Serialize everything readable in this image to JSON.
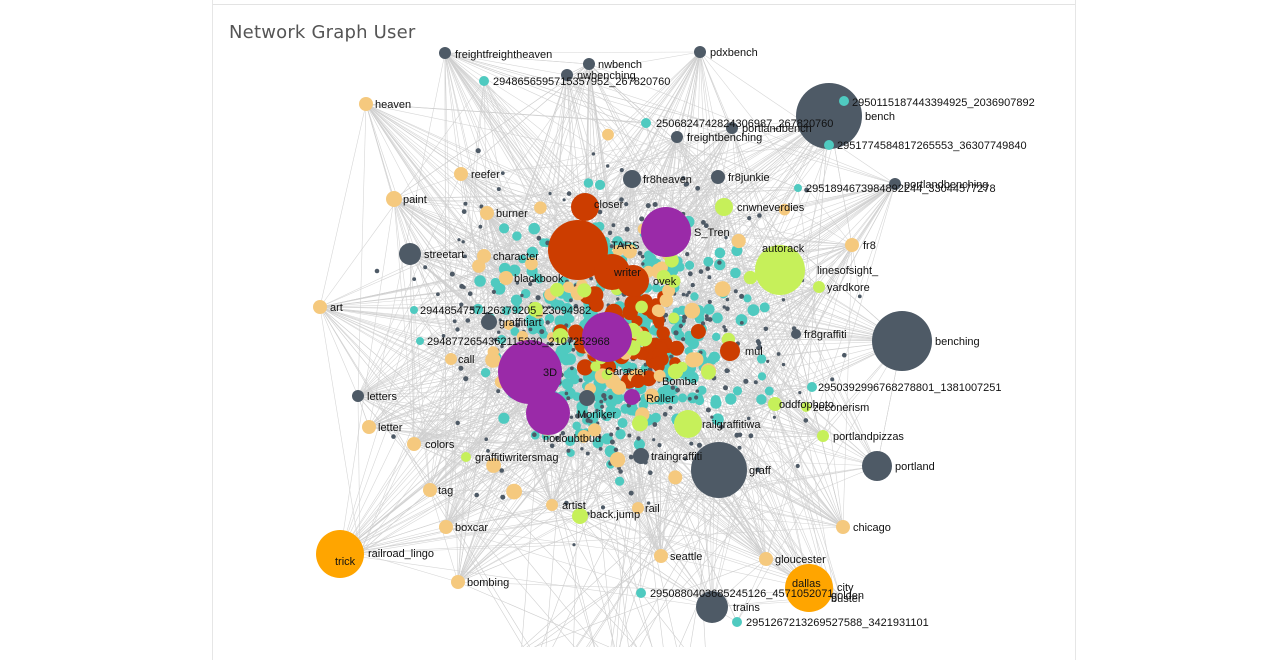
{
  "panel": {
    "title": "Network Graph User"
  },
  "colors": {
    "edge": "#cfcfcf",
    "user": "#4e5a66",
    "hashtag": "#f5c97e",
    "photo": "#4fcac0",
    "writer": "#cc3d00",
    "crew": "#9a2aa8",
    "topic": "#c6f05a",
    "featured": "#ffa500"
  },
  "chart_data": {
    "type": "network",
    "title": "Network Graph User",
    "nodes": [
      {
        "label": "freightfreightheaven",
        "group": "user"
      },
      {
        "label": "pdxbench",
        "group": "user"
      },
      {
        "label": "nwbench",
        "group": "user"
      },
      {
        "label": "nwbenching",
        "group": "user"
      },
      {
        "label": "2948656595715357952_267820760",
        "group": "photo"
      },
      {
        "label": "heaven",
        "group": "hashtag"
      },
      {
        "label": "2950115187443394925_2036907892",
        "group": "photo"
      },
      {
        "label": "bench",
        "group": "user"
      },
      {
        "label": "2506824742824306987_267820760",
        "group": "photo"
      },
      {
        "label": "portlandbench",
        "group": "user"
      },
      {
        "label": "freightbenching",
        "group": "user"
      },
      {
        "label": "2951774584817265553_36307749840",
        "group": "photo"
      },
      {
        "label": "reefer",
        "group": "hashtag"
      },
      {
        "label": "fr8heaven",
        "group": "user"
      },
      {
        "label": "fr8junkie",
        "group": "user"
      },
      {
        "label": "portlandbenching",
        "group": "user"
      },
      {
        "label": "2951894673984892244_33044577278",
        "group": "photo"
      },
      {
        "label": "paint",
        "group": "hashtag"
      },
      {
        "label": "burner",
        "group": "hashtag"
      },
      {
        "label": "closer",
        "group": "writer"
      },
      {
        "label": "cnwneverdies",
        "group": "topic"
      },
      {
        "label": "TARS",
        "group": "writer"
      },
      {
        "label": "S_Tren",
        "group": "crew"
      },
      {
        "label": "streetart",
        "group": "user"
      },
      {
        "label": "character",
        "group": "hashtag"
      },
      {
        "label": "autorack",
        "group": "topic"
      },
      {
        "label": "fr8",
        "group": "hashtag"
      },
      {
        "label": "writer",
        "group": "writer"
      },
      {
        "label": "blackbook",
        "group": "hashtag"
      },
      {
        "label": "ovek",
        "group": "writer"
      },
      {
        "label": "linesofsight_",
        "group": "topic"
      },
      {
        "label": "yardkore",
        "group": "topic"
      },
      {
        "label": "art",
        "group": "hashtag"
      },
      {
        "label": "2944854757126379205_23094982",
        "group": "photo"
      },
      {
        "label": "graffitiart",
        "group": "user"
      },
      {
        "label": "fr8graffiti",
        "group": "user"
      },
      {
        "label": "2948772654362115330_2107252968",
        "group": "photo"
      },
      {
        "label": "benching",
        "group": "user"
      },
      {
        "label": "mul",
        "group": "writer"
      },
      {
        "label": "call",
        "group": "hashtag"
      },
      {
        "label": "3D",
        "group": "crew"
      },
      {
        "label": "Caracter",
        "group": "crew"
      },
      {
        "label": "Bomba",
        "group": "writer"
      },
      {
        "label": "2950392996768278801_1381007251",
        "group": "photo"
      },
      {
        "label": "letters",
        "group": "user"
      },
      {
        "label": "Roller",
        "group": "crew"
      },
      {
        "label": "oddfophoto",
        "group": "topic"
      },
      {
        "label": "zeconerism",
        "group": "topic"
      },
      {
        "label": "Moniker",
        "group": "user"
      },
      {
        "label": "letter",
        "group": "hashtag"
      },
      {
        "label": "railgraffitiwa",
        "group": "topic"
      },
      {
        "label": "portlandpizzas",
        "group": "topic"
      },
      {
        "label": "nodoubtbud",
        "group": "crew"
      },
      {
        "label": "colors",
        "group": "hashtag"
      },
      {
        "label": "graffitiwritersmag",
        "group": "topic"
      },
      {
        "label": "traingraffiti",
        "group": "user"
      },
      {
        "label": "graff",
        "group": "user"
      },
      {
        "label": "portland",
        "group": "user"
      },
      {
        "label": "tag",
        "group": "hashtag"
      },
      {
        "label": "artist",
        "group": "hashtag"
      },
      {
        "label": "rail",
        "group": "hashtag"
      },
      {
        "label": "back.jump",
        "group": "topic"
      },
      {
        "label": "boxcar",
        "group": "hashtag"
      },
      {
        "label": "chicago",
        "group": "hashtag"
      },
      {
        "label": "trick",
        "group": "featured"
      },
      {
        "label": "railroad_lingo",
        "group": "hashtag"
      },
      {
        "label": "seattle",
        "group": "hashtag"
      },
      {
        "label": "gloucester",
        "group": "hashtag"
      },
      {
        "label": "dallas",
        "group": "featured"
      },
      {
        "label": "city",
        "group": "hashtag"
      },
      {
        "label": "bombing",
        "group": "hashtag"
      },
      {
        "label": "2950880403685245126_4571052071",
        "group": "photo"
      },
      {
        "label": "golden",
        "group": "hashtag"
      },
      {
        "label": "buster",
        "group": "hashtag"
      },
      {
        "label": "trains",
        "group": "user"
      },
      {
        "label": "2951267213269527588_3421931101",
        "group": "photo"
      }
    ]
  }
}
